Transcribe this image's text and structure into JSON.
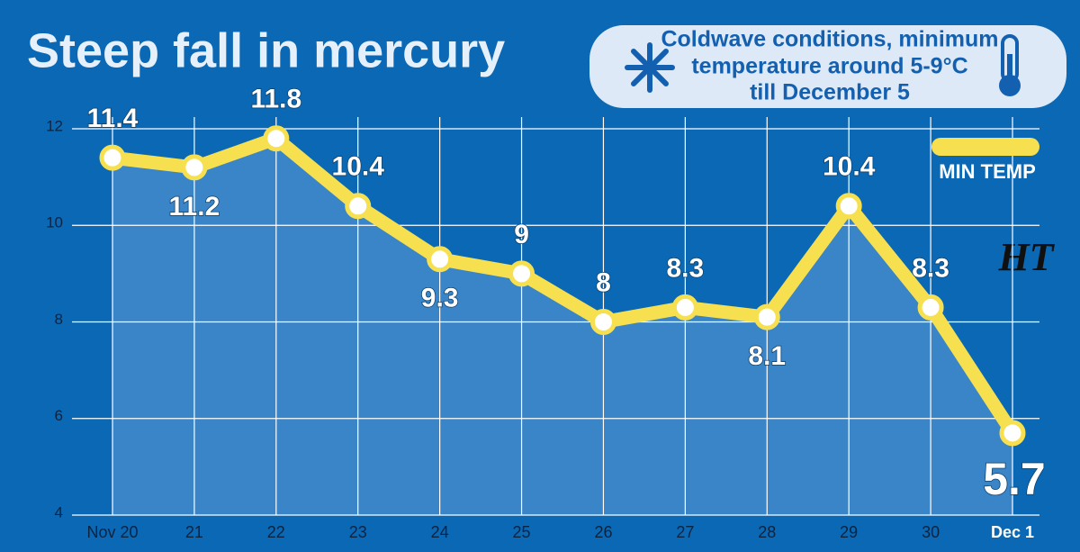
{
  "chart_data": {
    "type": "line",
    "title": "Steep fall in mercury",
    "callout": [
      "Coldwave conditions, minimum",
      "temperature around 5-9°C",
      "till December 5"
    ],
    "logo": "HT",
    "categories": [
      "Nov 20",
      "21",
      "22",
      "23",
      "24",
      "25",
      "26",
      "27",
      "28",
      "29",
      "30",
      "Dec 1"
    ],
    "series": [
      {
        "name": "MIN TEMP",
        "color": "#f7e04f",
        "values": [
          11.4,
          11.2,
          11.8,
          10.4,
          9.3,
          9,
          8,
          8.3,
          8.1,
          10.4,
          8.3,
          5.7
        ]
      }
    ],
    "ylim": [
      4,
      12
    ],
    "yticks": [
      4,
      6,
      8,
      10,
      12
    ],
    "grid": true
  }
}
